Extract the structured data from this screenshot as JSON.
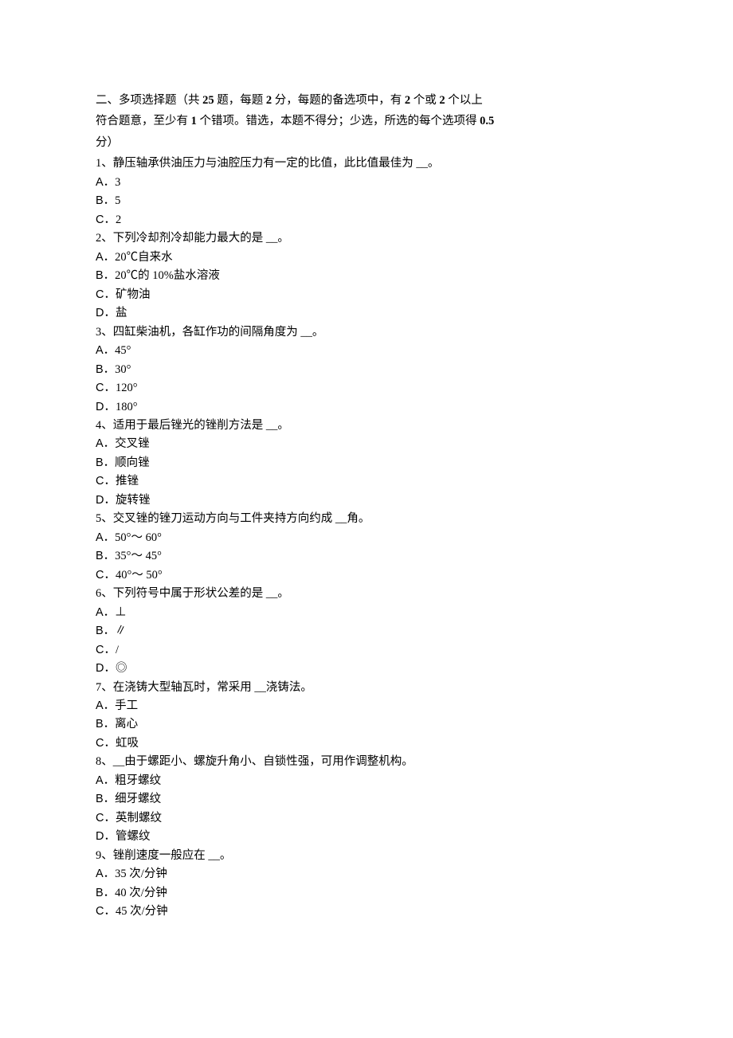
{
  "header": {
    "line1_prefix": "二、多项选择题（共 ",
    "line1_count": "25",
    "line1_mid1": " 题，每题 ",
    "line1_points": "2",
    "line1_mid2": " 分，每题的备选项中，有   ",
    "line1_min": "2",
    "line1_mid3": " 个或 ",
    "line1_min2": "2",
    "line1_mid4": " 个以上",
    "line2_prefix": "符合题意，至少有 ",
    "line2_wrong": "1",
    "line2_mid": " 个错项。错选，本题不得分；少选，所选的每个选项得     ",
    "line2_partial": "0.5",
    "line3": "分）"
  },
  "questions": [
    {
      "num": "1",
      "text": "、静压轴承供油压力与油腔压力有一定的比值，此比值最佳为     __。",
      "options": [
        {
          "label": "A",
          "text": "．3"
        },
        {
          "label": "B",
          "text": "．5"
        },
        {
          "label": "C",
          "text": "．2"
        }
      ]
    },
    {
      "num": "2",
      "text": "、下列冷却剂冷却能力最大的是   __。",
      "options": [
        {
          "label": "A",
          "text": "．20℃自来水"
        },
        {
          "label": "B",
          "text": "．20℃的 10%盐水溶液"
        },
        {
          "label": "C",
          "text": "．矿物油"
        },
        {
          "label": "D",
          "text": "．盐"
        }
      ]
    },
    {
      "num": "3",
      "text": "、四缸柴油机，各缸作功的间隔角度为    __。",
      "options": [
        {
          "label": "A",
          "text": "．45°"
        },
        {
          "label": "B",
          "text": "．30°"
        },
        {
          "label": "C",
          "text": "．120°"
        },
        {
          "label": "D",
          "text": "．180°"
        }
      ]
    },
    {
      "num": "4",
      "text": "、适用于最后锉光的锉削方法是   __。",
      "options": [
        {
          "label": "A",
          "text": "．交叉锉"
        },
        {
          "label": "B",
          "text": "．顺向锉"
        },
        {
          "label": "C",
          "text": "．推锉"
        },
        {
          "label": "D",
          "text": "．旋转锉"
        }
      ]
    },
    {
      "num": "5",
      "text": "、交叉锉的锉刀运动方向与工件夹持方向约成     __角。",
      "options": [
        {
          "label": "A",
          "text": "．50°～ 60°"
        },
        {
          "label": "B",
          "text": "．35°～ 45°"
        },
        {
          "label": "C",
          "text": "．40°～ 50°"
        }
      ]
    },
    {
      "num": "6",
      "text": "、下列符号中属于形状公差的是   __。",
      "options": [
        {
          "label": "A",
          "text": "．⊥"
        },
        {
          "label": "B",
          "text": "．∥"
        },
        {
          "label": "C",
          "text": "．/"
        },
        {
          "label": "D",
          "text": "．◎"
        }
      ]
    },
    {
      "num": "7",
      "text": "、在浇铸大型轴瓦时，常采用   __浇铸法。",
      "options": [
        {
          "label": "A",
          "text": "．手工"
        },
        {
          "label": "B",
          "text": "．离心"
        },
        {
          "label": "C",
          "text": "．虹吸"
        }
      ]
    },
    {
      "num": "8",
      "text": "、__由于螺距小、螺旋升角小、自锁性强，可用作调整机构。",
      "options": [
        {
          "label": "A",
          "text": "．粗牙螺纹"
        },
        {
          "label": "B",
          "text": "．细牙螺纹"
        },
        {
          "label": "C",
          "text": "．英制螺纹"
        },
        {
          "label": "D",
          "text": "．管螺纹"
        }
      ]
    },
    {
      "num": "9",
      "text": "、锉削速度一般应在  __。",
      "options": [
        {
          "label": "A",
          "text": "．35 次/分钟"
        },
        {
          "label": "B",
          "text": "．40 次/分钟"
        },
        {
          "label": "C",
          "text": "．45 次/分钟"
        }
      ]
    }
  ]
}
